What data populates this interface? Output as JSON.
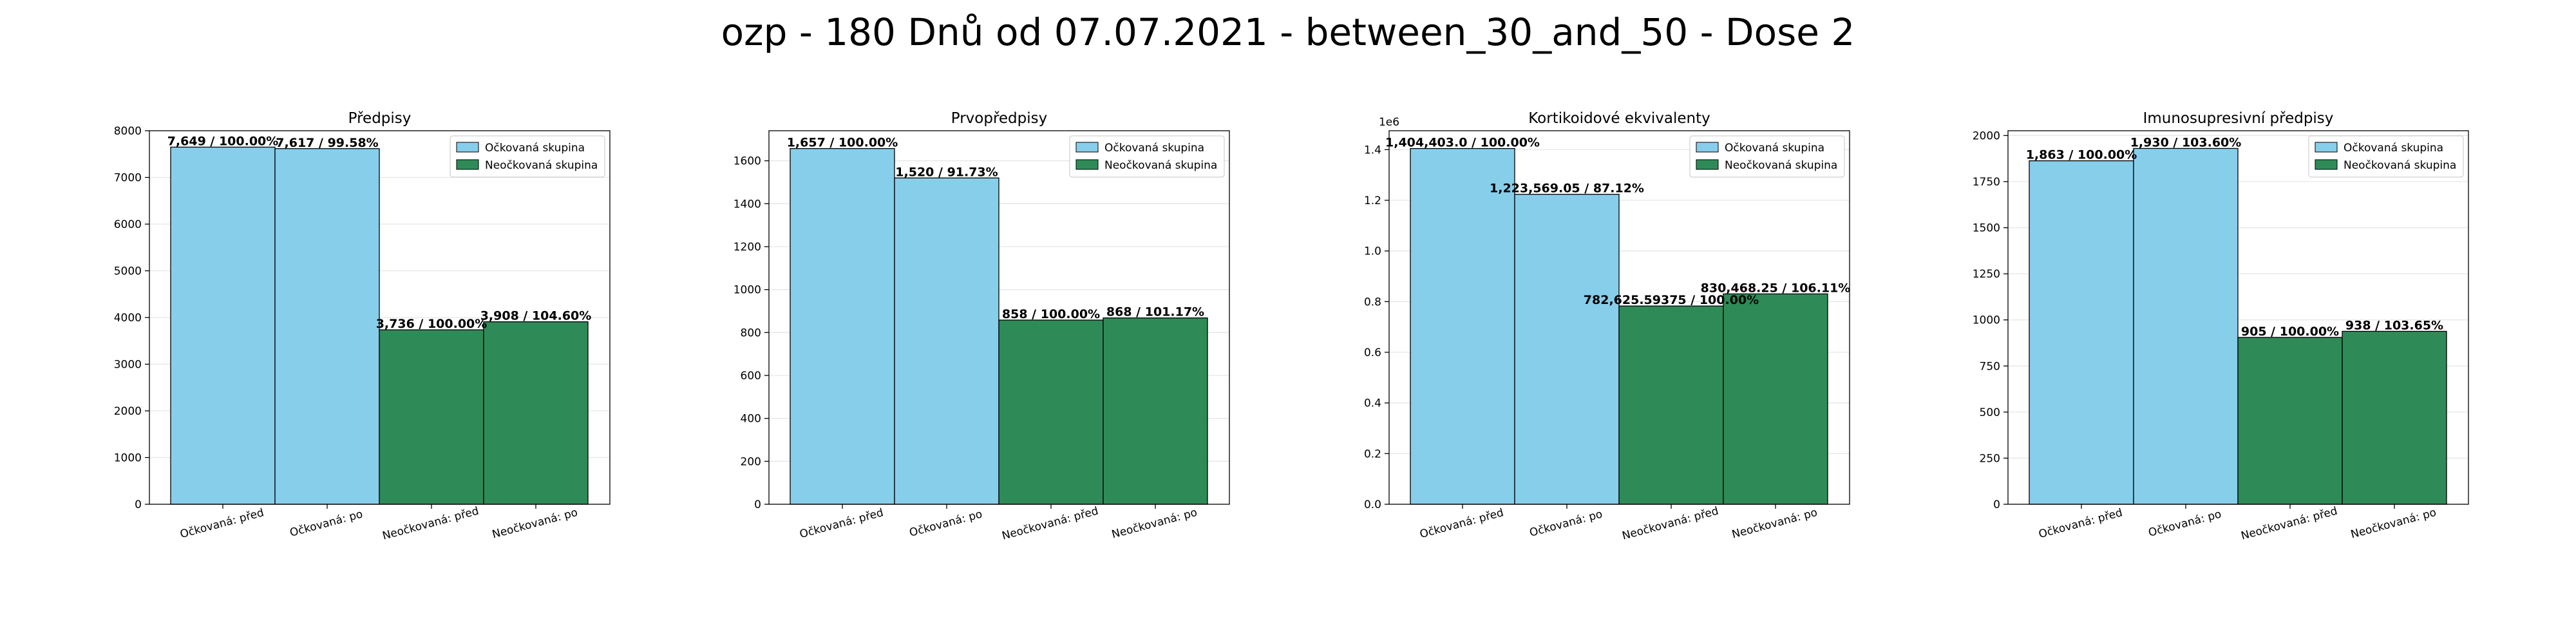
{
  "suptitle": "ozp - 180 Dnů od 07.07.2021 - between_30_and_50 - Dose 2",
  "colors": {
    "vaccinated": "#87CEEB",
    "unvaccinated": "#2E8B57",
    "edge": "#000000",
    "grid": "#e6e6e6"
  },
  "legend": [
    "Očkovaná skupina",
    "Neočkovaná skupina"
  ],
  "chart_data": [
    {
      "type": "bar",
      "title": "Předpisy",
      "categories": [
        "Očkovaná: před",
        "Očkovaná: po",
        "Neočkovaná: před",
        "Neočkovaná: po"
      ],
      "values": [
        7649,
        7617,
        3736,
        3908
      ],
      "labels": [
        "7,649 / 100.00%",
        "7,617 / 99.58%",
        "3,736 / 100.00%",
        "3,908 / 104.60%"
      ],
      "ylim": [
        0,
        8000
      ],
      "yticks": [
        0,
        1000,
        2000,
        3000,
        4000,
        5000,
        6000,
        7000,
        8000
      ],
      "ytick_labels": [
        "0",
        "1000",
        "2000",
        "3000",
        "4000",
        "5000",
        "6000",
        "7000",
        "8000"
      ],
      "offset_text": "",
      "legend_position": "top-right",
      "grid": "y"
    },
    {
      "type": "bar",
      "title": "Prvopředpisy",
      "categories": [
        "Očkovaná: před",
        "Očkovaná: po",
        "Neočkovaná: před",
        "Neočkovaná: po"
      ],
      "values": [
        1657,
        1520,
        858,
        868
      ],
      "labels": [
        "1,657 / 100.00%",
        "1,520 / 91.73%",
        "858 / 100.00%",
        "868 / 101.17%"
      ],
      "ylim": [
        0,
        1740
      ],
      "yticks": [
        0,
        200,
        400,
        600,
        800,
        1000,
        1200,
        1400,
        1600
      ],
      "ytick_labels": [
        "0",
        "200",
        "400",
        "600",
        "800",
        "1000",
        "1200",
        "1400",
        "1600"
      ],
      "offset_text": "",
      "legend_position": "top-right",
      "grid": "y"
    },
    {
      "type": "bar",
      "title": "Kortikoidové ekvivalenty",
      "categories": [
        "Očkovaná: před",
        "Očkovaná: po",
        "Neočkovaná: před",
        "Neočkovaná: po"
      ],
      "values": [
        1404403.0,
        1223569.05,
        782625.59375,
        830468.25
      ],
      "labels": [
        "1,404,403.0 / 100.00%",
        "1,223,569.05 / 87.12%",
        "782,625.59375 / 100.00%",
        "830,468.25 / 106.11%"
      ],
      "ylim": [
        0,
        1474623
      ],
      "yticks": [
        0,
        200000,
        400000,
        600000,
        800000,
        1000000,
        1200000,
        1400000
      ],
      "ytick_labels": [
        "0.0",
        "0.2",
        "0.4",
        "0.6",
        "0.8",
        "1.0",
        "1.2",
        "1.4"
      ],
      "offset_text": "1e6",
      "legend_position": "top-right",
      "grid": "y"
    },
    {
      "type": "bar",
      "title": "Imunosupresivní předpisy",
      "categories": [
        "Očkovaná: před",
        "Očkovaná: po",
        "Neočkovaná: před",
        "Neočkovaná: po"
      ],
      "values": [
        1863,
        1930,
        905,
        938
      ],
      "labels": [
        "1,863 / 100.00%",
        "1,930 / 103.60%",
        "905 / 100.00%",
        "938 / 103.65%"
      ],
      "ylim": [
        0,
        2026
      ],
      "yticks": [
        0,
        250,
        500,
        750,
        1000,
        1250,
        1500,
        1750,
        2000
      ],
      "ytick_labels": [
        "0",
        "250",
        "500",
        "750",
        "1000",
        "1250",
        "1500",
        "1750",
        "2000"
      ],
      "offset_text": "",
      "legend_position": "top-right",
      "grid": "y"
    }
  ]
}
